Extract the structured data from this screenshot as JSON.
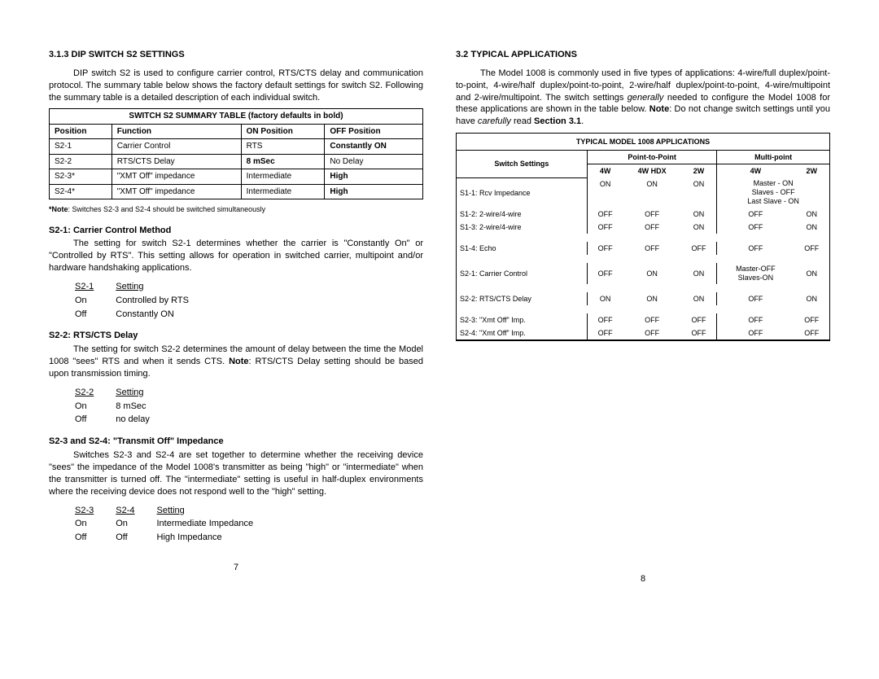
{
  "left": {
    "section_no": "3.1.3",
    "section_title": "DIP SWITCH S2 SETTINGS",
    "intro": "DIP switch S2 is used to configure carrier control, RTS/CTS delay and communication protocol.  The summary table below shows the factory default settings for switch S2.  Following the summary table is a detailed description of each individual switch.",
    "table_caption": "SWITCH S2 SUMMARY TABLE (factory defaults in bold)",
    "table_headers": [
      "Position",
      "Function",
      "ON Position",
      "OFF Position"
    ],
    "table_rows": [
      {
        "c0": "S2-1",
        "c1": "Carrier Control",
        "c2": "RTS",
        "c3": "Constantly ON",
        "bold3": true
      },
      {
        "c0": "S2-2",
        "c1": "RTS/CTS Delay",
        "c2": "8 mSec",
        "c3": "No Delay",
        "bold2": true
      },
      {
        "c0": "S2-3*",
        "c1": "\"XMT Off\" impedance",
        "c2": "Intermediate",
        "c3": "High",
        "bold3": true
      },
      {
        "c0": "S2-4*",
        "c1": "\"XMT Off\" impedance",
        "c2": "Intermediate",
        "c3": "High",
        "bold3": true
      }
    ],
    "note_label": "*Note",
    "note_text": ": Switches S2-3 and S2-4 should be switched simultaneously",
    "s21_title": "S2-1:  Carrier Control Method",
    "s21_text": "The setting for switch S2-1 determines whether the carrier is \"Constantly On\" or \"Controlled by RTS\".  This setting allows for operation in switched carrier, multipoint and/or hardware handshaking applications.",
    "s21_rows_h": [
      "S2-1",
      "Setting"
    ],
    "s21_rows": [
      [
        "On",
        "Controlled by RTS"
      ],
      [
        "Off",
        "Constantly ON"
      ]
    ],
    "s22_title": "S2-2:  RTS/CTS Delay",
    "s22_text_a": "The setting for switch S2-2 determines the amount of delay between the time the Model 1008 \"sees\" RTS and when it sends CTS.  ",
    "s22_note_label": "Note",
    "s22_text_b": ":  RTS/CTS Delay setting should be based upon transmission timing.",
    "s22_rows_h": [
      "S2-2",
      "Setting"
    ],
    "s22_rows": [
      [
        "On",
        "8 mSec"
      ],
      [
        "Off",
        "no delay"
      ]
    ],
    "s23_title": "S2-3 and S2-4:  \"Transmit Off\" Impedance",
    "s23_text": "Switches S2-3 and S2-4 are set together to determine whether the receiving device \"sees\" the impedance of the Model 1008's transmitter as being \"high\" or \"intermediate\" when the transmitter is turned off.  The \"intermediate\" setting is useful in half-duplex environments where the receiving device does not respond well to the \"high\" setting.",
    "s23_rows_h": [
      "S2-3",
      "S2-4",
      "Setting"
    ],
    "s23_rows": [
      [
        "On",
        "On",
        "Intermediate Impedance"
      ],
      [
        "Off",
        "Off",
        "High Impedance"
      ]
    ],
    "page_num": "7"
  },
  "right": {
    "section_no": "3.2",
    "section_title": "TYPICAL APPLICATIONS",
    "intro_a": "The Model 1008 is commonly used in five types of applications: 4-wire/full duplex/point-to-point, 4-wire/half duplex/point-to-point, 2-wire/half duplex/point-to-point, 4-wire/multipoint and 2-wire/multipoint.  The switch settings ",
    "intro_i1": "generally",
    "intro_b": " needed to configure the Model 1008 for these applications are shown in the table below.  ",
    "intro_note": "Note",
    "intro_c": ":  Do not change switch settings until you have ",
    "intro_i2": "carefully",
    "intro_d": " read ",
    "intro_sec": "Section 3.1",
    "intro_e": ".",
    "app_caption": "TYPICAL MODEL 1008 APPLICATIONS",
    "group1": "Point-to-Point",
    "group2": "Multi-point",
    "sub_heads": [
      "4W",
      "4W HDX",
      "2W",
      "4W",
      "2W"
    ],
    "settings_label": "Switch Settings",
    "app_rows": [
      {
        "label": "S1-1:  Rcv Impedance",
        "v": [
          "ON",
          "ON",
          "ON",
          "Master - ON\nSlaves - OFF\nLast Slave - ON",
          ""
        ],
        "merge34": true,
        "multiline": true
      },
      {
        "label": "S1-2:  2-wire/4-wire",
        "v": [
          "OFF",
          "OFF",
          "ON",
          "OFF",
          "ON"
        ]
      },
      {
        "label": "S1-3:  2-wire/4-wire",
        "v": [
          "OFF",
          "OFF",
          "ON",
          "OFF",
          "ON"
        ]
      },
      {
        "spacer": true
      },
      {
        "label": "S1-4:  Echo",
        "v": [
          "OFF",
          "OFF",
          "OFF",
          "OFF",
          "OFF"
        ]
      },
      {
        "spacer": true
      },
      {
        "label": "S2-1:  Carrier Control",
        "v": [
          "OFF",
          "ON",
          "ON",
          "Master-OFF\nSlaves-ON",
          "ON"
        ],
        "multiline4": true
      },
      {
        "spacer": true
      },
      {
        "label": "S2-2:  RTS/CTS Delay",
        "v": [
          "ON",
          "ON",
          "ON",
          "OFF",
          "ON"
        ]
      },
      {
        "spacer": true
      },
      {
        "label": "S2-3:  \"Xmt Off\" Imp.",
        "v": [
          "OFF",
          "OFF",
          "OFF",
          "OFF",
          "OFF"
        ]
      },
      {
        "label": "S2-4:  \"Xmt Off\" Imp.",
        "v": [
          "OFF",
          "OFF",
          "OFF",
          "OFF",
          "OFF"
        ]
      }
    ],
    "page_num": "8"
  }
}
